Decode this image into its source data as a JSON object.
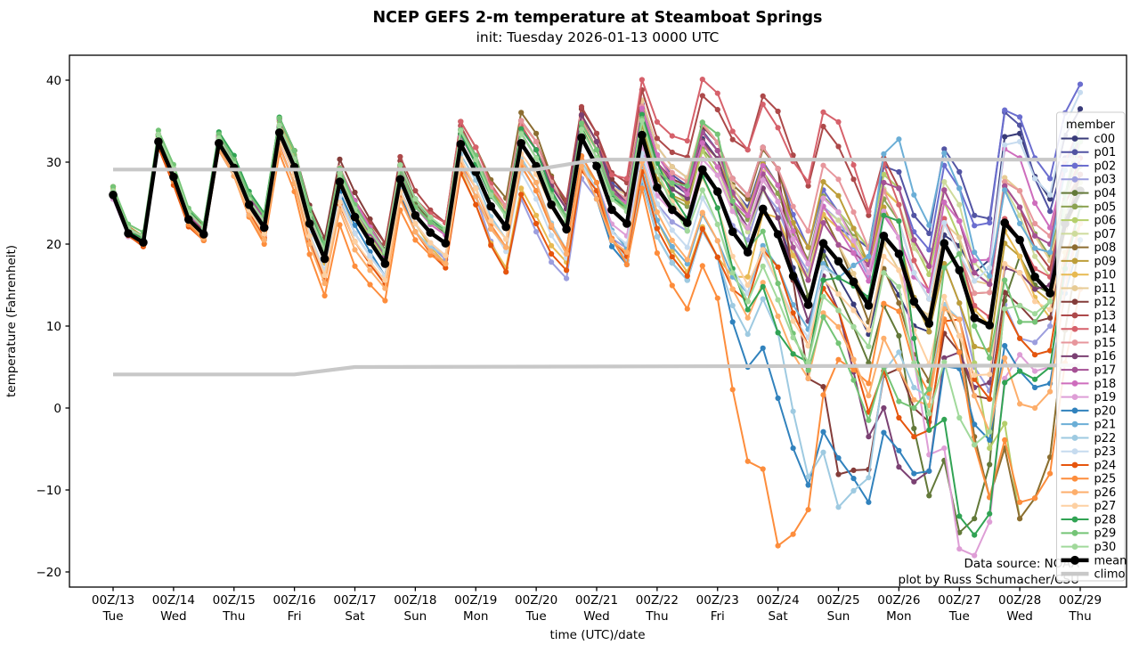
{
  "chart_data": {
    "type": "line",
    "title": "NCEP GEFS 2-m temperature at Steamboat Springs",
    "subtitle": "init: Tuesday 2026-01-13 0000 UTC",
    "xlabel": "time (UTC)/date",
    "ylabel": "temperature (Fahrenheit)",
    "ylim": [
      -21.8,
      43.1
    ],
    "yticks": [
      40,
      30,
      20,
      10,
      0,
      -10,
      -20
    ],
    "xticks": [
      {
        "utc": "00Z/13",
        "day": "Tue"
      },
      {
        "utc": "00Z/14",
        "day": "Wed"
      },
      {
        "utc": "00Z/15",
        "day": "Thu"
      },
      {
        "utc": "00Z/16",
        "day": "Fri"
      },
      {
        "utc": "00Z/17",
        "day": "Sat"
      },
      {
        "utc": "00Z/18",
        "day": "Sun"
      },
      {
        "utc": "00Z/19",
        "day": "Mon"
      },
      {
        "utc": "00Z/20",
        "day": "Tue"
      },
      {
        "utc": "00Z/21",
        "day": "Wed"
      },
      {
        "utc": "00Z/22",
        "day": "Thu"
      },
      {
        "utc": "00Z/23",
        "day": "Fri"
      },
      {
        "utc": "00Z/24",
        "day": "Sat"
      },
      {
        "utc": "00Z/25",
        "day": "Sun"
      },
      {
        "utc": "00Z/26",
        "day": "Mon"
      },
      {
        "utc": "00Z/27",
        "day": "Tue"
      },
      {
        "utc": "00Z/28",
        "day": "Wed"
      },
      {
        "utc": "00Z/29",
        "day": "Thu"
      }
    ],
    "time": {
      "start_day": 13,
      "step_hours": 6,
      "points": 65
    },
    "legend": {
      "title": "member",
      "mean_label": "mean",
      "climo_label": "climo"
    },
    "annotations": {
      "line1": "Data source: NOAA",
      "line2": "plot by Russ Schumacher/CSU"
    },
    "mean": {
      "label": "mean",
      "color": "#000000",
      "values": [
        26.0,
        21.3,
        20.2,
        32.5,
        28.2,
        23.0,
        21.2,
        32.3,
        29.3,
        24.8,
        22.0,
        33.6,
        29.4,
        22.5,
        18.2,
        27.6,
        23.3,
        20.3,
        17.6,
        27.9,
        23.5,
        21.4,
        20.1,
        32.2,
        28.8,
        24.6,
        22.1,
        32.3,
        29.5,
        24.8,
        21.8,
        33.0,
        29.5,
        24.2,
        22.5,
        33.3,
        26.9,
        24.2,
        22.6,
        29.1,
        26.4,
        21.5,
        19.0,
        24.3,
        21.2,
        16.1,
        12.6,
        20.1,
        17.9,
        15.4,
        12.5,
        21.0,
        18.8,
        13.0,
        10.3,
        20.1,
        16.8,
        11.0,
        10.1,
        22.6,
        20.5,
        16.0,
        14.0,
        22.5,
        26.5
      ]
    },
    "climo": {
      "label": "climo",
      "color": "#c8c8c8",
      "max_points": [
        [
          13,
          29.1
        ],
        [
          20,
          29.1
        ],
        [
          21,
          30.3
        ],
        [
          29,
          30.3
        ]
      ],
      "min_points": [
        [
          13,
          4.1
        ],
        [
          16,
          4.1
        ],
        [
          17,
          5.0
        ],
        [
          29,
          5.2
        ]
      ]
    },
    "members": [
      {
        "name": "c00",
        "color": "#393b79",
        "daily_offsets_from_mean": [
          0,
          0.5,
          0,
          1,
          2,
          1,
          2,
          1,
          2,
          3,
          4,
          2,
          -2,
          -5,
          3,
          13,
          10
        ]
      },
      {
        "name": "p01",
        "color": "#5254a3",
        "daily_offsets_from_mean": [
          0,
          -0.5,
          1,
          0.5,
          1,
          2,
          1,
          2,
          3,
          4,
          5,
          6,
          4,
          10,
          12,
          14,
          6
        ]
      },
      {
        "name": "p02",
        "color": "#6b6ecf",
        "daily_offsets_from_mean": [
          0.5,
          0,
          0.5,
          1,
          1.5,
          1,
          2,
          3,
          2,
          5,
          6,
          8,
          6,
          8,
          10,
          15,
          13
        ]
      },
      {
        "name": "p03",
        "color": "#9c9ede",
        "daily_offsets_from_mean": [
          -0.5,
          0,
          -1,
          -2,
          -2,
          -1,
          -3,
          -8,
          -4,
          -2,
          0,
          3,
          5,
          2,
          -4,
          -12,
          4
        ]
      },
      {
        "name": "p04",
        "color": "#637939",
        "daily_offsets_from_mean": [
          0,
          1,
          0.5,
          1,
          2,
          1.5,
          1,
          2,
          3,
          2,
          4,
          6,
          -4,
          -10,
          -32,
          -2,
          2
        ]
      },
      {
        "name": "p05",
        "color": "#8ca252",
        "daily_offsets_from_mean": [
          0.5,
          0,
          1,
          2,
          1,
          1,
          2,
          3,
          2,
          1,
          3,
          5,
          6,
          4,
          2,
          6,
          3
        ]
      },
      {
        "name": "p06",
        "color": "#b5cf6b",
        "daily_offsets_from_mean": [
          1,
          0.5,
          1,
          1.5,
          0.5,
          1,
          1,
          2,
          1,
          3,
          2,
          4,
          6,
          8,
          4,
          -34,
          -6
        ]
      },
      {
        "name": "p07",
        "color": "#cedb9c",
        "daily_offsets_from_mean": [
          0,
          1,
          0.5,
          0,
          1,
          2,
          1.5,
          1,
          2,
          4,
          3,
          2,
          5,
          6,
          8,
          3,
          1
        ]
      },
      {
        "name": "p08",
        "color": "#8c6d31",
        "daily_offsets_from_mean": [
          0.5,
          1,
          1,
          2,
          1,
          2,
          3,
          4,
          2,
          3,
          5,
          8,
          2,
          -6,
          -8,
          -34,
          -6
        ]
      },
      {
        "name": "p09",
        "color": "#bd9e39",
        "daily_offsets_from_mean": [
          1,
          0.5,
          0,
          1,
          2,
          1,
          2,
          2,
          3,
          1,
          4,
          6,
          8,
          2,
          -4,
          -2,
          0
        ]
      },
      {
        "name": "p10",
        "color": "#e7ba52",
        "daily_offsets_from_mean": [
          0.8,
          -1,
          0.5,
          1,
          -2,
          -1,
          -4,
          -6,
          -2,
          -4,
          -8,
          2,
          4,
          6,
          2,
          -2,
          -4
        ]
      },
      {
        "name": "p11",
        "color": "#e7cb94",
        "daily_offsets_from_mean": [
          0.5,
          0,
          1,
          0,
          1,
          2,
          1,
          3,
          2,
          5,
          6,
          4,
          2,
          -2,
          4,
          6,
          2
        ]
      },
      {
        "name": "p12",
        "color": "#843c39",
        "daily_offsets_from_mean": [
          0,
          0.5,
          1,
          2,
          3,
          2,
          1,
          2,
          4,
          3,
          6,
          8,
          -26,
          -14,
          -10,
          -8,
          2
        ]
      },
      {
        "name": "p13",
        "color": "#ad494a",
        "daily_offsets_from_mean": [
          0.5,
          1,
          0,
          1,
          2,
          3,
          2,
          3,
          4,
          6,
          10,
          15,
          14,
          8,
          6,
          4,
          2
        ]
      },
      {
        "name": "p14",
        "color": "#d6616b",
        "daily_offsets_from_mean": [
          0,
          0.5,
          1,
          2,
          1,
          2,
          3,
          2,
          3,
          8,
          12,
          13,
          17,
          6,
          2,
          0,
          4
        ]
      },
      {
        "name": "p15",
        "color": "#e7969c",
        "daily_offsets_from_mean": [
          1,
          0,
          0.5,
          1,
          2,
          1,
          2,
          3,
          2,
          4,
          6,
          8,
          10,
          4,
          2,
          6,
          8
        ]
      },
      {
        "name": "p16",
        "color": "#7b4173",
        "daily_offsets_from_mean": [
          0,
          0.5,
          0,
          1,
          1,
          2,
          1,
          2,
          3,
          2,
          4,
          2,
          -6,
          -26,
          -10,
          -4,
          6
        ]
      },
      {
        "name": "p17",
        "color": "#a55194",
        "daily_offsets_from_mean": [
          0.5,
          1,
          0.5,
          2,
          1,
          1,
          2,
          1,
          2,
          3,
          5,
          4,
          2,
          8,
          6,
          4,
          8
        ]
      },
      {
        "name": "p18",
        "color": "#ce6dbd",
        "daily_offsets_from_mean": [
          0,
          0.5,
          1,
          0,
          2,
          1,
          1,
          2,
          1,
          4,
          3,
          6,
          4,
          2,
          6,
          10,
          6
        ]
      },
      {
        "name": "p19",
        "color": "#de9ed6",
        "daily_offsets_from_mean": [
          -0.5,
          0,
          -1,
          -1,
          -2,
          -1,
          -2,
          -3,
          -2,
          -1,
          2,
          4,
          6,
          2,
          -34,
          -14,
          -4
        ]
      },
      {
        "name": "p20",
        "color": "#3182bd",
        "daily_offsets_from_mean": [
          0,
          -0.5,
          -1,
          -2,
          -1,
          -2,
          -3,
          -2,
          -4,
          -6,
          -8,
          -20,
          -24,
          -24,
          -12,
          -16,
          -6
        ]
      },
      {
        "name": "p21",
        "color": "#6baed6",
        "daily_offsets_from_mean": [
          0.5,
          0,
          -0.5,
          -1,
          -2,
          -1,
          -2,
          -3,
          -2,
          -4,
          -6,
          -4,
          -2,
          14,
          10,
          2,
          8
        ]
      },
      {
        "name": "p22",
        "color": "#9ecae1",
        "daily_offsets_from_mean": [
          0,
          0.5,
          -1,
          -2,
          -3,
          -2,
          -1,
          -2,
          -3,
          -6,
          -8,
          -12,
          -30,
          -12,
          -6,
          -12,
          -2
        ]
      },
      {
        "name": "p23",
        "color": "#c6dbef",
        "daily_offsets_from_mean": [
          0.5,
          0,
          0,
          -1,
          -2,
          -1,
          -2,
          -4,
          -3,
          -2,
          -4,
          -6,
          -2,
          4,
          2,
          12,
          12
        ]
      },
      {
        "name": "p24",
        "color": "#e6550d",
        "daily_offsets_from_mean": [
          0,
          -1,
          -0.5,
          -2,
          -3,
          -2,
          -4,
          -7,
          -3,
          -5,
          -8,
          -4,
          -6,
          -20,
          -6,
          -12,
          -2
        ]
      },
      {
        "name": "p25",
        "color": "#fd8d3c",
        "daily_offsets_from_mean": [
          0,
          -0.5,
          -1,
          -3,
          -6,
          -3,
          -2,
          -3,
          -2,
          -8,
          -13,
          -38,
          -12,
          -7,
          -10,
          -32,
          -12
        ]
      },
      {
        "name": "p26",
        "color": "#fdae6b",
        "daily_offsets_from_mean": [
          0.5,
          0,
          -1,
          -2,
          -4,
          -2,
          -3,
          -2,
          -4,
          -3,
          -6,
          -10,
          -8,
          -14,
          -6,
          -20,
          -4
        ]
      },
      {
        "name": "p27",
        "color": "#fdd0a2",
        "daily_offsets_from_mean": [
          0,
          0.5,
          -0.5,
          -1,
          -3,
          -1,
          -2,
          -1,
          2,
          2,
          -2,
          -6,
          -4,
          -2,
          -8,
          -4,
          0
        ]
      },
      {
        "name": "p28",
        "color": "#31a354",
        "daily_offsets_from_mean": [
          0,
          1,
          1.5,
          2,
          1,
          2,
          1,
          2,
          1,
          3,
          -2,
          -12,
          -2,
          4,
          -30,
          -16,
          -2
        ]
      },
      {
        "name": "p29",
        "color": "#74c476",
        "daily_offsets_from_mean": [
          1,
          1.5,
          1,
          2,
          1.5,
          1,
          2,
          1,
          2,
          2,
          7,
          -6,
          -10,
          -18,
          2,
          -10,
          8
        ]
      },
      {
        "name": "p30",
        "color": "#a1d99b",
        "daily_offsets_from_mean": [
          0.5,
          1,
          0.5,
          1,
          1,
          2,
          1.5,
          1,
          1,
          2,
          -4,
          -8,
          -6,
          -4,
          -18,
          -8,
          6
        ]
      }
    ]
  }
}
